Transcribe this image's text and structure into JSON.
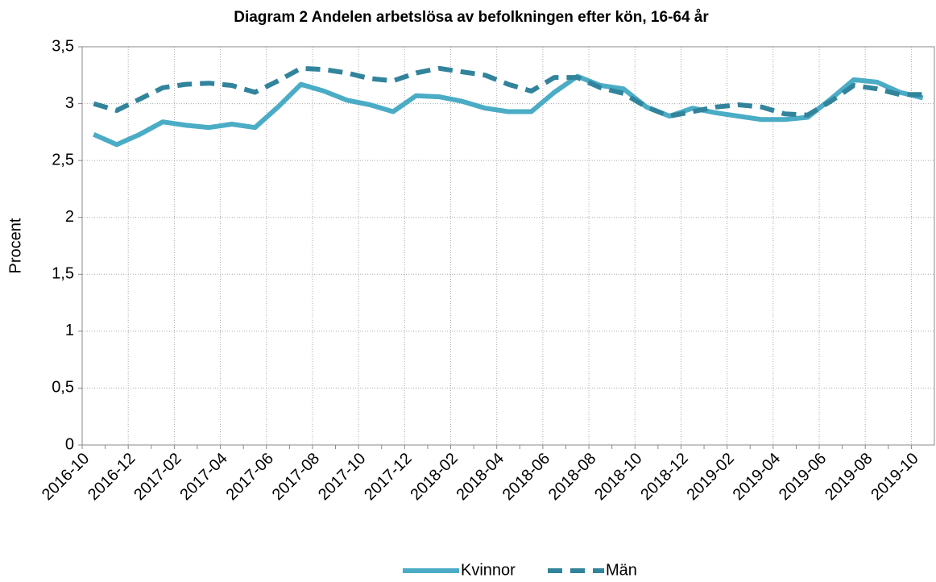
{
  "chart_data": {
    "type": "line",
    "title": "Diagram 2 Andelen arbetslösa av befolkningen efter kön, 16-64 år",
    "y_label": "Procent",
    "categories": [
      "2016-10",
      null,
      "2016-12",
      null,
      "2017-02",
      null,
      "2017-04",
      null,
      "2017-06",
      null,
      "2017-08",
      null,
      "2017-10",
      null,
      "2017-12",
      null,
      "2018-02",
      null,
      "2018-04",
      null,
      "2018-06",
      null,
      "2018-08",
      null,
      "2018-10",
      null,
      "2018-12",
      null,
      "2019-02",
      null,
      "2019-04",
      null,
      "2019-06",
      null,
      "2019-08",
      null,
      "2019-10"
    ],
    "series": [
      {
        "name": "Kvinnor",
        "color": "#4bacc6",
        "dashed": false,
        "values": [
          2.73,
          2.64,
          2.73,
          2.84,
          2.81,
          2.79,
          2.82,
          2.79,
          2.97,
          3.17,
          3.11,
          3.03,
          2.99,
          2.93,
          3.07,
          3.06,
          3.02,
          2.96,
          2.93,
          2.93,
          3.1,
          3.24,
          3.16,
          3.13,
          2.97,
          2.89,
          2.96,
          2.92,
          2.89,
          2.86,
          2.86,
          2.88,
          3.04,
          3.21,
          3.19,
          3.1,
          3.05
        ]
      },
      {
        "name": "Män",
        "color": "#31849b",
        "dashed": true,
        "values": [
          3.0,
          2.94,
          3.04,
          3.14,
          3.17,
          3.18,
          3.16,
          3.1,
          3.2,
          3.31,
          3.3,
          3.27,
          3.22,
          3.2,
          3.27,
          3.31,
          3.28,
          3.25,
          3.17,
          3.11,
          3.23,
          3.23,
          3.14,
          3.09,
          2.97,
          2.89,
          2.93,
          2.97,
          2.99,
          2.97,
          2.91,
          2.9,
          3.02,
          3.16,
          3.13,
          3.08,
          3.08
        ]
      }
    ],
    "ylim": [
      0,
      3.5
    ],
    "yticks": [
      0,
      {
        "value": 0.5,
        "label": "0,5"
      },
      1,
      {
        "value": 1.5,
        "label": "1,5"
      },
      2,
      {
        "value": 2.5,
        "label": "2,5"
      },
      3,
      {
        "value": 3.5,
        "label": "3,5"
      }
    ],
    "grid": true,
    "legend": "bottom"
  }
}
